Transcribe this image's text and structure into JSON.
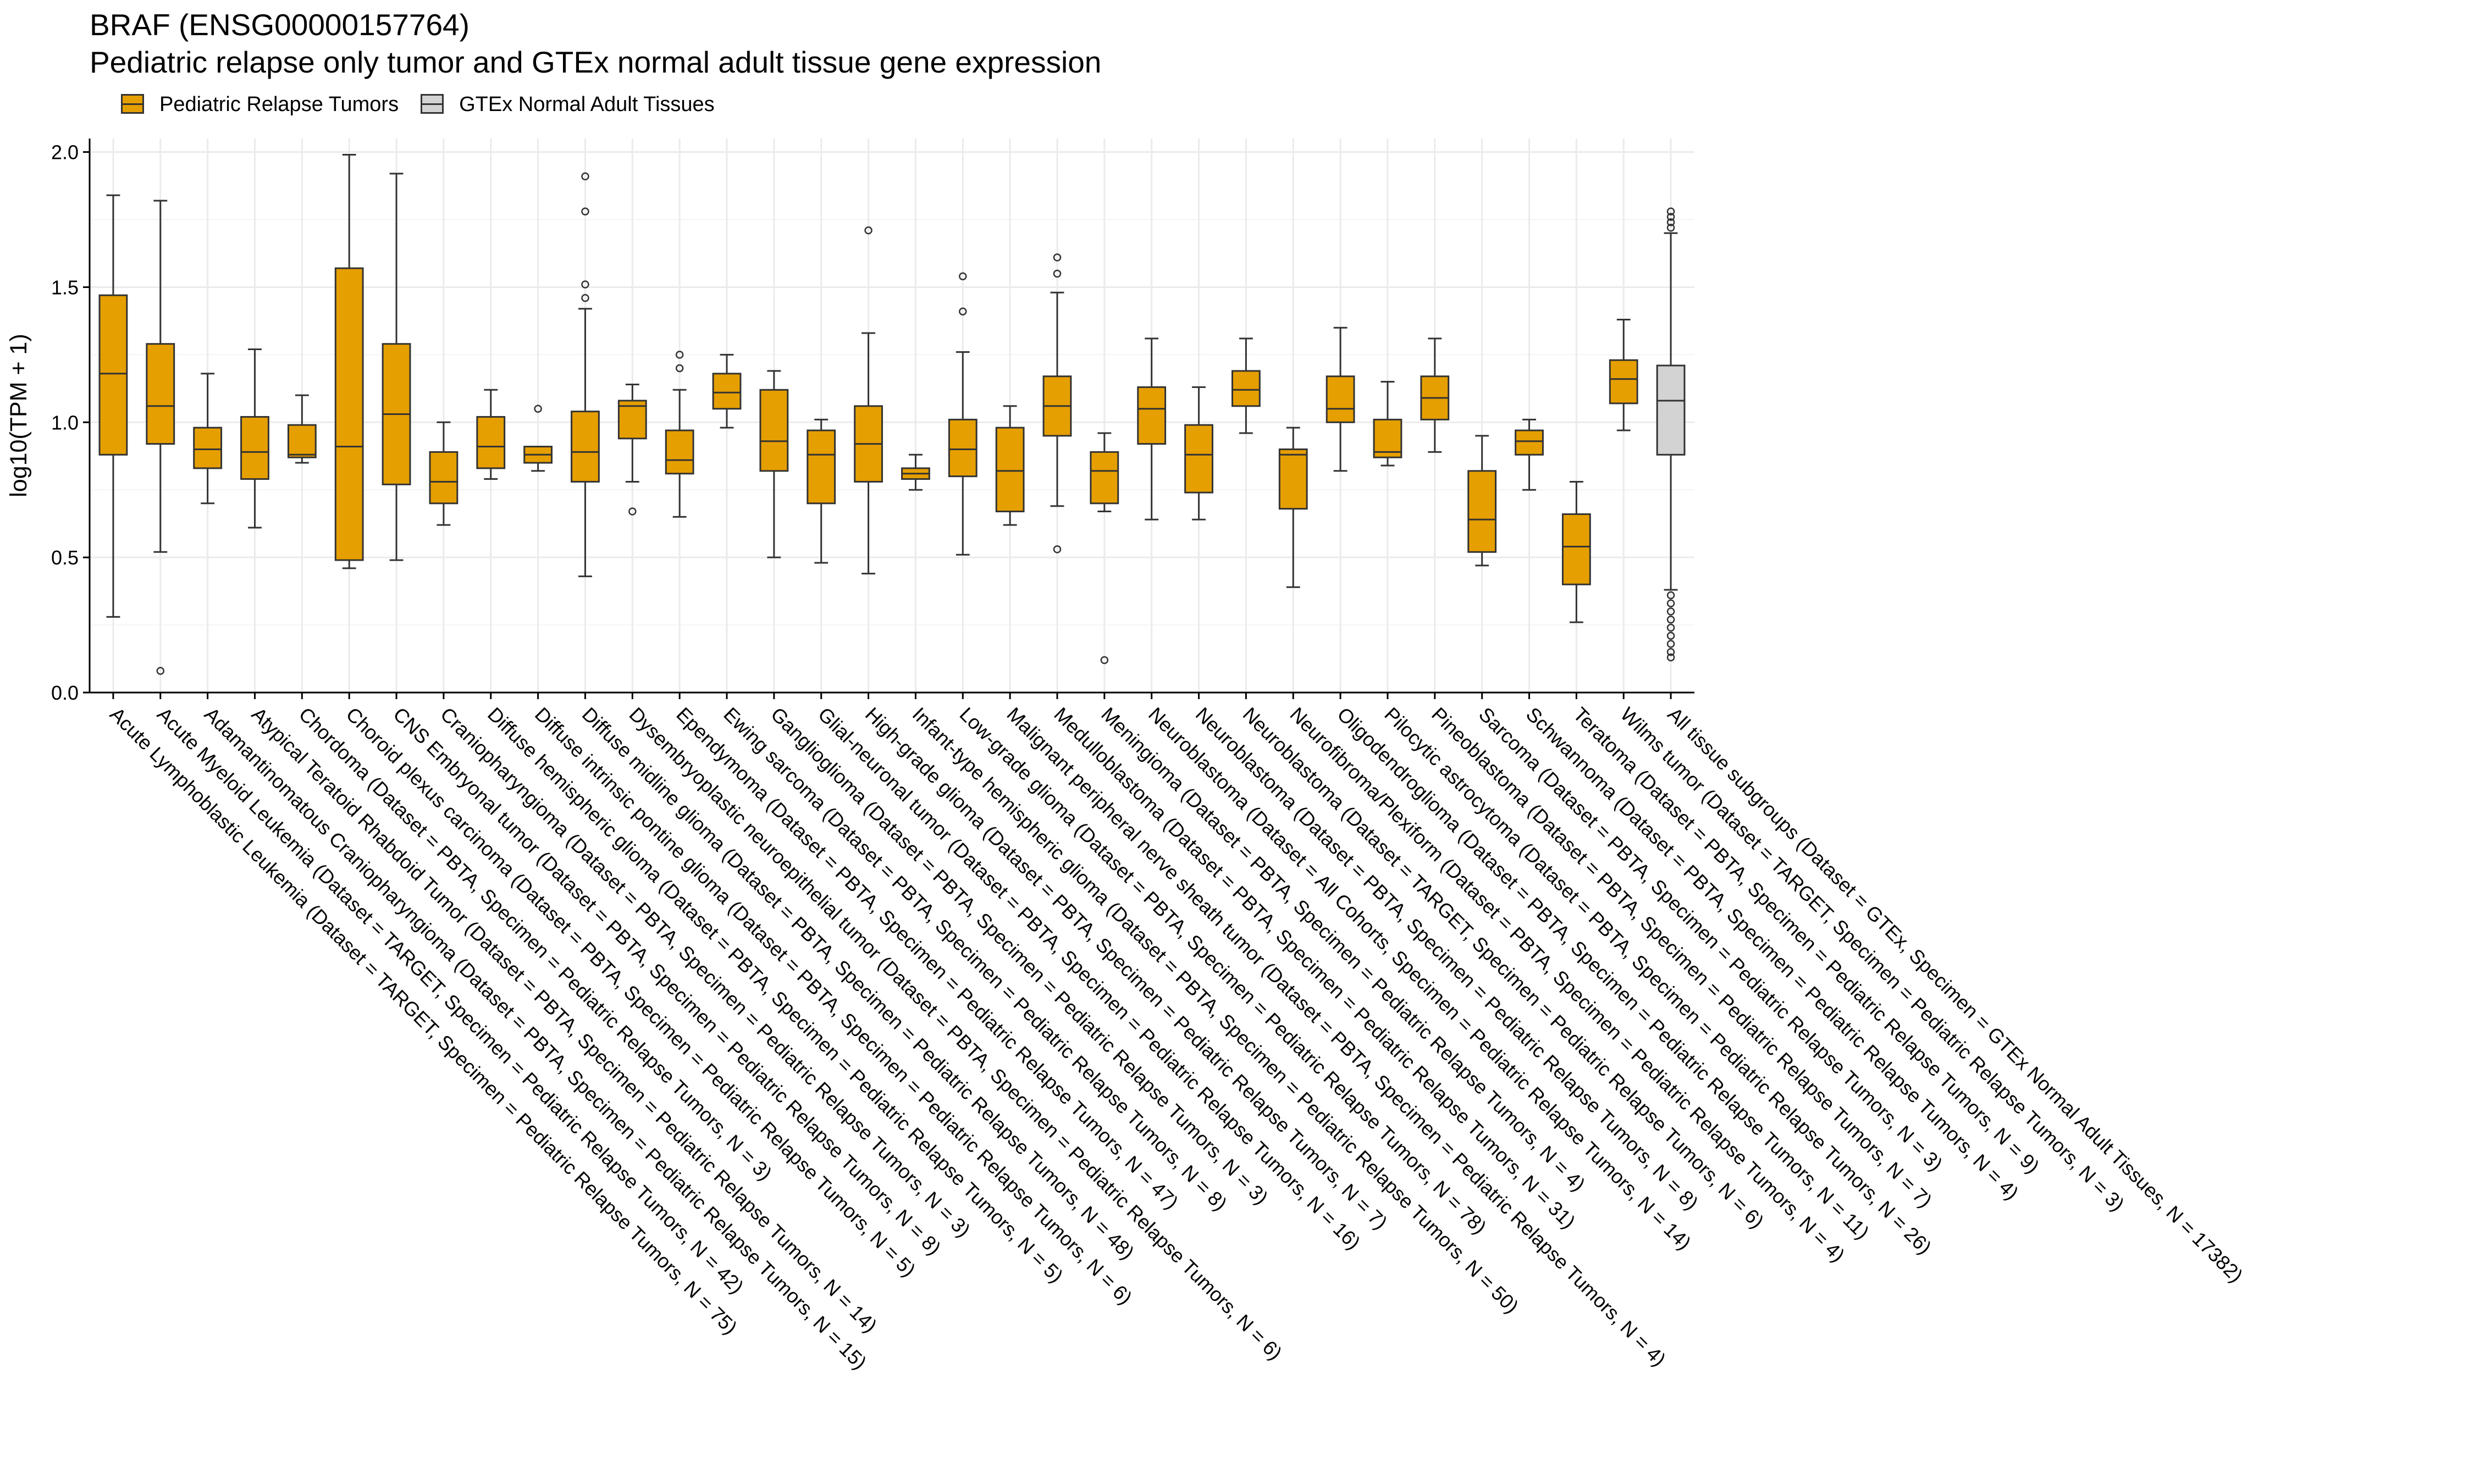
{
  "chart_data": {
    "type": "box",
    "title": "BRAF (ENSG00000157764)",
    "subtitle": "Pediatric relapse only tumor and GTEx normal adult tissue gene expression",
    "ylabel": "log10(TPM + 1)",
    "ylim": [
      0,
      2.05
    ],
    "yticks": [
      "0.0",
      "0.5",
      "1.0",
      "1.5",
      "2.0"
    ],
    "legend": [
      {
        "name": "Pediatric Relapse Tumors",
        "color": "#E69F00"
      },
      {
        "name": "GTEx Normal Adult Tissues",
        "color": "#D3D3D3"
      }
    ],
    "legend_position": "top-left",
    "grid": true,
    "categories": [
      {
        "label": "Acute Lymphoblastic Leukemia  (Dataset = TARGET, Specimen = Pediatric Relapse Tumors, N = 75)",
        "group": 0,
        "min": 0.28,
        "q1": 0.88,
        "median": 1.18,
        "q3": 1.47,
        "max": 1.84,
        "outliers": []
      },
      {
        "label": "Acute Myeloid Leukemia  (Dataset = TARGET, Specimen = Pediatric Relapse Tumors, N = 42)",
        "group": 0,
        "min": 0.52,
        "q1": 0.92,
        "median": 1.06,
        "q3": 1.29,
        "max": 1.82,
        "outliers": [
          0.08
        ]
      },
      {
        "label": "Adamantinomatous Craniopharyngioma  (Dataset = PBTA, Specimen = Pediatric Relapse Tumors, N = 15)",
        "group": 0,
        "min": 0.7,
        "q1": 0.83,
        "median": 0.9,
        "q3": 0.98,
        "max": 1.18,
        "outliers": []
      },
      {
        "label": "Atypical Teratoid Rhabdoid Tumor  (Dataset = PBTA, Specimen = Pediatric Relapse Tumors, N = 14)",
        "group": 0,
        "min": 0.61,
        "q1": 0.79,
        "median": 0.89,
        "q3": 1.02,
        "max": 1.27,
        "outliers": []
      },
      {
        "label": "Chordoma  (Dataset = PBTA, Specimen = Pediatric Relapse Tumors, N = 3)",
        "group": 0,
        "min": 0.85,
        "q1": 0.87,
        "median": 0.88,
        "q3": 0.99,
        "max": 1.1,
        "outliers": []
      },
      {
        "label": "Choroid plexus carcinoma  (Dataset = PBTA, Specimen = Pediatric Relapse Tumors, N = 5)",
        "group": 0,
        "min": 0.46,
        "q1": 0.49,
        "median": 0.91,
        "q3": 1.57,
        "max": 1.99,
        "outliers": []
      },
      {
        "label": "CNS Embryonal tumor  (Dataset = PBTA, Specimen = Pediatric Relapse Tumors, N = 8)",
        "group": 0,
        "min": 0.49,
        "q1": 0.77,
        "median": 1.03,
        "q3": 1.29,
        "max": 1.92,
        "outliers": []
      },
      {
        "label": "Craniopharyngioma  (Dataset = PBTA, Specimen = Pediatric Relapse Tumors, N = 3)",
        "group": 0,
        "min": 0.62,
        "q1": 0.7,
        "median": 0.78,
        "q3": 0.89,
        "max": 1.0,
        "outliers": []
      },
      {
        "label": "Diffuse hemispheric glioma  (Dataset = PBTA, Specimen = Pediatric Relapse Tumors, N = 5)",
        "group": 0,
        "min": 0.79,
        "q1": 0.83,
        "median": 0.91,
        "q3": 1.02,
        "max": 1.12,
        "outliers": []
      },
      {
        "label": "Diffuse intrinsic pontine glioma  (Dataset = PBTA, Specimen = Pediatric Relapse Tumors, N = 6)",
        "group": 0,
        "min": 0.82,
        "q1": 0.85,
        "median": 0.88,
        "q3": 0.91,
        "max": 0.91,
        "outliers": [
          1.05
        ]
      },
      {
        "label": "Diffuse midline glioma  (Dataset = PBTA, Specimen = Pediatric Relapse Tumors, N = 48)",
        "group": 0,
        "min": 0.43,
        "q1": 0.78,
        "median": 0.89,
        "q3": 1.04,
        "max": 1.42,
        "outliers": [
          1.46,
          1.51,
          1.78,
          1.91
        ]
      },
      {
        "label": "Dysembryoplastic neuroepithelial tumor  (Dataset = PBTA, Specimen = Pediatric Relapse Tumors, N = 6)",
        "group": 0,
        "min": 0.78,
        "q1": 0.94,
        "median": 1.06,
        "q3": 1.08,
        "max": 1.14,
        "outliers": [
          0.67
        ]
      },
      {
        "label": "Ependymoma  (Dataset = PBTA, Specimen = Pediatric Relapse Tumors, N = 47)",
        "group": 0,
        "min": 0.65,
        "q1": 0.81,
        "median": 0.86,
        "q3": 0.97,
        "max": 1.12,
        "outliers": [
          1.2,
          1.25
        ]
      },
      {
        "label": "Ewing sarcoma  (Dataset = PBTA, Specimen = Pediatric Relapse Tumors, N = 8)",
        "group": 0,
        "min": 0.98,
        "q1": 1.05,
        "median": 1.11,
        "q3": 1.18,
        "max": 1.25,
        "outliers": []
      },
      {
        "label": "Ganglioglioma  (Dataset = PBTA, Specimen = Pediatric Relapse Tumors, N = 3)",
        "group": 0,
        "min": 0.5,
        "q1": 0.82,
        "median": 0.93,
        "q3": 1.12,
        "max": 1.19,
        "outliers": []
      },
      {
        "label": "Glial-neuronal tumor  (Dataset = PBTA, Specimen = Pediatric Relapse Tumors, N = 16)",
        "group": 0,
        "min": 0.48,
        "q1": 0.7,
        "median": 0.88,
        "q3": 0.97,
        "max": 1.01,
        "outliers": []
      },
      {
        "label": "High-grade glioma  (Dataset = PBTA, Specimen = Pediatric Relapse Tumors, N = 7)",
        "group": 0,
        "min": 0.44,
        "q1": 0.78,
        "median": 0.92,
        "q3": 1.06,
        "max": 1.33,
        "outliers": [
          1.71
        ]
      },
      {
        "label": "Infant-type hemispheric glioma  (Dataset = PBTA, Specimen = Pediatric Relapse Tumors, N = 50)",
        "group": 0,
        "min": 0.75,
        "q1": 0.79,
        "median": 0.81,
        "q3": 0.83,
        "max": 0.88,
        "outliers": []
      },
      {
        "label": "Low-grade glioma  (Dataset = PBTA, Specimen = Pediatric Relapse Tumors, N = 78)",
        "group": 0,
        "min": 0.51,
        "q1": 0.8,
        "median": 0.9,
        "q3": 1.01,
        "max": 1.26,
        "outliers": [
          1.41,
          1.54
        ]
      },
      {
        "label": "Malignant peripheral nerve sheath tumor  (Dataset = PBTA, Specimen = Pediatric Relapse Tumors, N = 4)",
        "group": 0,
        "min": 0.62,
        "q1": 0.67,
        "median": 0.82,
        "q3": 0.98,
        "max": 1.06,
        "outliers": []
      },
      {
        "label": "Medulloblastoma  (Dataset = PBTA, Specimen = Pediatric Relapse Tumors, N = 31)",
        "group": 0,
        "min": 0.69,
        "q1": 0.95,
        "median": 1.06,
        "q3": 1.17,
        "max": 1.48,
        "outliers": [
          0.53,
          1.55,
          1.61
        ]
      },
      {
        "label": "Meningioma  (Dataset = PBTA, Specimen = Pediatric Relapse Tumors, N = 4)",
        "group": 0,
        "min": 0.67,
        "q1": 0.7,
        "median": 0.82,
        "q3": 0.89,
        "max": 0.96,
        "outliers": [
          0.12
        ]
      },
      {
        "label": "Neuroblastoma  (Dataset = All Cohorts, Specimen = Pediatric Relapse Tumors, N = 14)",
        "group": 0,
        "min": 0.64,
        "q1": 0.92,
        "median": 1.05,
        "q3": 1.13,
        "max": 1.31,
        "outliers": []
      },
      {
        "label": "Neuroblastoma  (Dataset = PBTA, Specimen = Pediatric Relapse Tumors, N = 8)",
        "group": 0,
        "min": 0.64,
        "q1": 0.74,
        "median": 0.88,
        "q3": 0.99,
        "max": 1.13,
        "outliers": []
      },
      {
        "label": "Neuroblastoma  (Dataset = TARGET, Specimen = Pediatric Relapse Tumors, N = 6)",
        "group": 0,
        "min": 0.96,
        "q1": 1.06,
        "median": 1.12,
        "q3": 1.19,
        "max": 1.31,
        "outliers": []
      },
      {
        "label": "Neurofibroma/Plexiform  (Dataset = PBTA, Specimen = Pediatric Relapse Tumors, N = 4)",
        "group": 0,
        "min": 0.39,
        "q1": 0.68,
        "median": 0.88,
        "q3": 0.9,
        "max": 0.98,
        "outliers": []
      },
      {
        "label": "Oligodendroglioma  (Dataset = PBTA, Specimen = Pediatric Relapse Tumors, N = 11)",
        "group": 0,
        "min": 0.82,
        "q1": 1.0,
        "median": 1.05,
        "q3": 1.17,
        "max": 1.35,
        "outliers": []
      },
      {
        "label": "Pilocytic astrocytoma  (Dataset = PBTA, Specimen = Pediatric Relapse Tumors, N = 26)",
        "group": 0,
        "min": 0.84,
        "q1": 0.87,
        "median": 0.89,
        "q3": 1.01,
        "max": 1.15,
        "outliers": []
      },
      {
        "label": "Pineoblastoma  (Dataset = PBTA, Specimen = Pediatric Relapse Tumors, N = 7)",
        "group": 0,
        "min": 0.89,
        "q1": 1.01,
        "median": 1.09,
        "q3": 1.17,
        "max": 1.31,
        "outliers": []
      },
      {
        "label": "Sarcoma  (Dataset = PBTA, Specimen = Pediatric Relapse Tumors, N = 3)",
        "group": 0,
        "min": 0.47,
        "q1": 0.52,
        "median": 0.64,
        "q3": 0.82,
        "max": 0.95,
        "outliers": []
      },
      {
        "label": "Schwannoma  (Dataset = PBTA, Specimen = Pediatric Relapse Tumors, N = 4)",
        "group": 0,
        "min": 0.75,
        "q1": 0.88,
        "median": 0.93,
        "q3": 0.97,
        "max": 1.01,
        "outliers": []
      },
      {
        "label": "Teratoma  (Dataset = PBTA, Specimen = Pediatric Relapse Tumors, N = 9)",
        "group": 0,
        "min": 0.26,
        "q1": 0.4,
        "median": 0.54,
        "q3": 0.66,
        "max": 0.78,
        "outliers": []
      },
      {
        "label": "Wilms tumor  (Dataset = TARGET, Specimen = Pediatric Relapse Tumors, N = 3)",
        "group": 0,
        "min": 0.97,
        "q1": 1.07,
        "median": 1.16,
        "q3": 1.23,
        "max": 1.38,
        "outliers": []
      },
      {
        "label": "All tissue subgroups  (Dataset = GTEx, Specimen = GTEx Normal Adult Tissues, N = 17382)",
        "group": 1,
        "min": 0.38,
        "q1": 0.88,
        "median": 1.08,
        "q3": 1.21,
        "max": 1.7,
        "outliers": [
          0.13,
          0.15,
          0.18,
          0.21,
          0.24,
          0.27,
          0.3,
          0.33,
          0.36,
          1.72,
          1.74,
          1.76,
          1.78
        ]
      }
    ]
  }
}
